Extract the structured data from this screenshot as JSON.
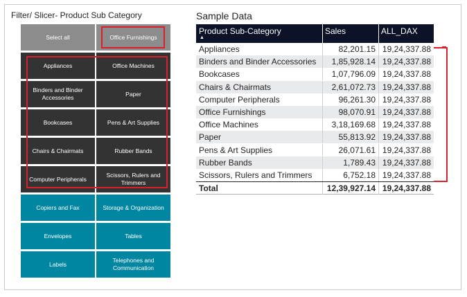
{
  "slicer": {
    "title": "Filter/ Slicer- Product Sub Category",
    "tiles": [
      {
        "label": "Select all",
        "state": "unselected"
      },
      {
        "label": "Office Furnishings",
        "state": "unselected"
      },
      {
        "label": "Appliances",
        "state": "selected"
      },
      {
        "label": "Office Machines",
        "state": "selected"
      },
      {
        "label": "Binders and Binder Accessories",
        "state": "selected"
      },
      {
        "label": "Paper",
        "state": "selected"
      },
      {
        "label": "Bookcases",
        "state": "selected"
      },
      {
        "label": "Pens & Art Supplies",
        "state": "selected"
      },
      {
        "label": "Chairs & Chairmats",
        "state": "selected"
      },
      {
        "label": "Rubber Bands",
        "state": "selected"
      },
      {
        "label": "Computer Peripherals",
        "state": "selected"
      },
      {
        "label": "Scissors, Rulers and Trimmers",
        "state": "selected"
      },
      {
        "label": "Copiers and Fax",
        "state": "filtered"
      },
      {
        "label": "Storage & Organization",
        "state": "filtered"
      },
      {
        "label": "Envelopes",
        "state": "filtered"
      },
      {
        "label": "Tables",
        "state": "filtered"
      },
      {
        "label": "Labels",
        "state": "filtered"
      },
      {
        "label": "Telephones and Communication",
        "state": "filtered"
      }
    ]
  },
  "table": {
    "title": "Sample Data",
    "columns": [
      "Product Sub-Category",
      "Sales",
      "ALL_DAX"
    ],
    "sort_indicator": "▲",
    "rows": [
      [
        "Appliances",
        "82,201.15",
        "19,24,337.88"
      ],
      [
        "Binders and Binder Accessories",
        "1,85,928.14",
        "19,24,337.88"
      ],
      [
        "Bookcases",
        "1,07,796.09",
        "19,24,337.88"
      ],
      [
        "Chairs & Chairmats",
        "2,61,072.73",
        "19,24,337.88"
      ],
      [
        "Computer Peripherals",
        "96,261.30",
        "19,24,337.88"
      ],
      [
        "Office Furnishings",
        "98,070.91",
        "19,24,337.88"
      ],
      [
        "Office Machines",
        "3,18,169.68",
        "19,24,337.88"
      ],
      [
        "Paper",
        "55,813.92",
        "19,24,337.88"
      ],
      [
        "Pens & Art Supplies",
        "26,071.61",
        "19,24,337.88"
      ],
      [
        "Rubber Bands",
        "1,789.43",
        "19,24,337.88"
      ],
      [
        "Scissors, Rulers and Trimmers",
        "6,752.18",
        "19,24,337.88"
      ]
    ],
    "total": [
      "Total",
      "12,39,927.14",
      "19,24,337.88"
    ]
  },
  "colors": {
    "header_bg": "#0c1227",
    "tile_gray": "#8c8c8c",
    "tile_dark": "#333333",
    "tile_teal": "#0086a0",
    "highlight_red": "#d8202a",
    "row_alt": "#e9eaec"
  }
}
